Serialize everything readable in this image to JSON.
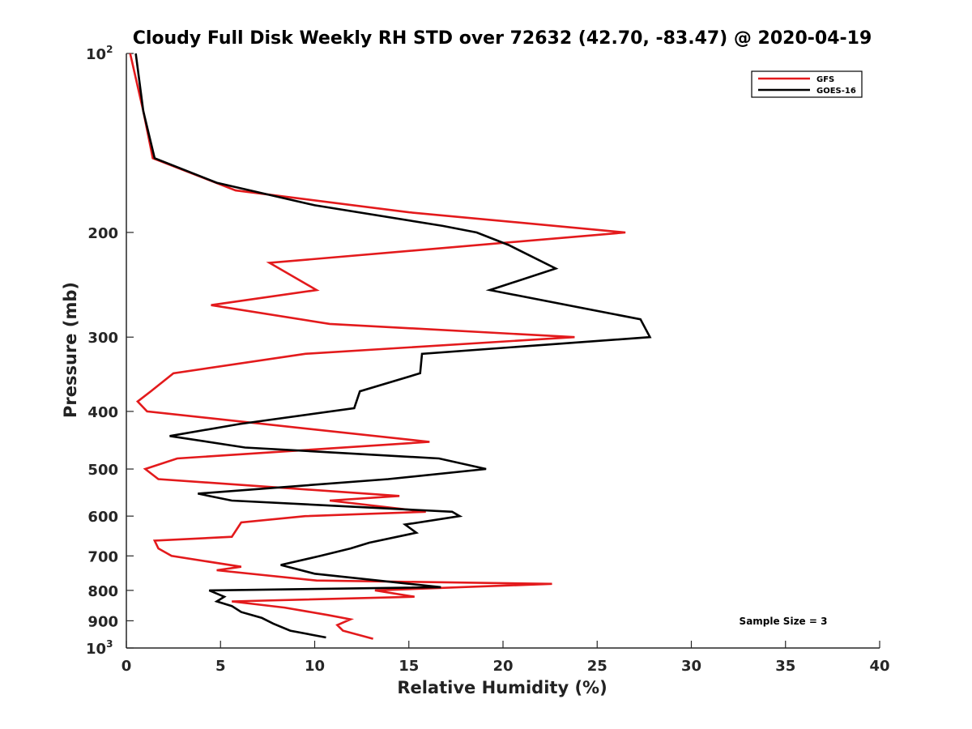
{
  "chart_data": {
    "type": "line",
    "title": "Cloudy Full Disk Weekly RH STD over 72632 (42.70, -83.47) @ 2020-04-19",
    "xlabel": "Relative Humidity (%)",
    "ylabel": "Pressure (mb)",
    "xlim": [
      0,
      40
    ],
    "ylim": [
      100,
      1000
    ],
    "y_scale": "log",
    "y_reversed": true,
    "x_ticks": [
      "0",
      "5",
      "10",
      "15",
      "20",
      "25",
      "30",
      "35",
      "40"
    ],
    "y_ticks": [
      {
        "value": 100,
        "base": "10",
        "exp": "2"
      },
      {
        "value": 200,
        "label": "200"
      },
      {
        "value": 300,
        "label": "300"
      },
      {
        "value": 400,
        "label": "400"
      },
      {
        "value": 500,
        "label": "500"
      },
      {
        "value": 600,
        "label": "600"
      },
      {
        "value": 700,
        "label": "700"
      },
      {
        "value": 800,
        "label": "800"
      },
      {
        "value": 900,
        "label": "900"
      },
      {
        "value": 1000,
        "base": "10",
        "exp": "3"
      }
    ],
    "grid": false,
    "legend_position": "top-right",
    "annotation": "Sample Size = 3",
    "series": [
      {
        "name": "GFS",
        "color": "#e31a1c",
        "points": [
          [
            0.2,
            100
          ],
          [
            0.9,
            125
          ],
          [
            1.4,
            150
          ],
          [
            5.8,
            170
          ],
          [
            15.0,
            185
          ],
          [
            26.5,
            200
          ],
          [
            7.6,
            225
          ],
          [
            10.1,
            250
          ],
          [
            4.5,
            265
          ],
          [
            10.8,
            285
          ],
          [
            23.8,
            300
          ],
          [
            9.5,
            320
          ],
          [
            2.5,
            345
          ],
          [
            1.3,
            370
          ],
          [
            0.6,
            385
          ],
          [
            1.1,
            400
          ],
          [
            16.1,
            450
          ],
          [
            2.7,
            480
          ],
          [
            1.0,
            500
          ],
          [
            1.7,
            520
          ],
          [
            14.5,
            555
          ],
          [
            10.8,
            565
          ],
          [
            15.9,
            590
          ],
          [
            9.5,
            600
          ],
          [
            6.1,
            615
          ],
          [
            5.6,
            650
          ],
          [
            1.5,
            660
          ],
          [
            1.7,
            680
          ],
          [
            2.4,
            700
          ],
          [
            6.1,
            730
          ],
          [
            4.8,
            740
          ],
          [
            10.1,
            770
          ],
          [
            22.6,
            780
          ],
          [
            13.2,
            800
          ],
          [
            15.3,
            820
          ],
          [
            5.6,
            835
          ],
          [
            8.4,
            855
          ],
          [
            10.7,
            880
          ],
          [
            11.9,
            895
          ],
          [
            11.2,
            915
          ],
          [
            11.5,
            935
          ],
          [
            13.1,
            965
          ]
        ]
      },
      {
        "name": "GOES-16",
        "color": "#000000",
        "points": [
          [
            0.5,
            100
          ],
          [
            0.9,
            125
          ],
          [
            1.5,
            150
          ],
          [
            4.8,
            165
          ],
          [
            10.0,
            180
          ],
          [
            16.8,
            195
          ],
          [
            18.6,
            200
          ],
          [
            20.3,
            210
          ],
          [
            22.8,
            230
          ],
          [
            19.3,
            250
          ],
          [
            27.3,
            280
          ],
          [
            27.8,
            300
          ],
          [
            15.7,
            320
          ],
          [
            15.6,
            345
          ],
          [
            12.4,
            370
          ],
          [
            12.1,
            395
          ],
          [
            6.0,
            420
          ],
          [
            2.3,
            440
          ],
          [
            6.3,
            460
          ],
          [
            16.6,
            480
          ],
          [
            19.1,
            500
          ],
          [
            13.9,
            520
          ],
          [
            3.8,
            550
          ],
          [
            5.6,
            565
          ],
          [
            17.3,
            590
          ],
          [
            17.7,
            600
          ],
          [
            14.8,
            620
          ],
          [
            15.4,
            640
          ],
          [
            12.9,
            665
          ],
          [
            11.9,
            680
          ],
          [
            10.3,
            700
          ],
          [
            8.2,
            725
          ],
          [
            10.0,
            750
          ],
          [
            16.7,
            790
          ],
          [
            4.4,
            800
          ],
          [
            5.2,
            820
          ],
          [
            4.8,
            835
          ],
          [
            5.6,
            850
          ],
          [
            6.1,
            870
          ],
          [
            7.2,
            890
          ],
          [
            7.8,
            910
          ],
          [
            8.7,
            935
          ],
          [
            10.6,
            960
          ]
        ]
      }
    ]
  }
}
